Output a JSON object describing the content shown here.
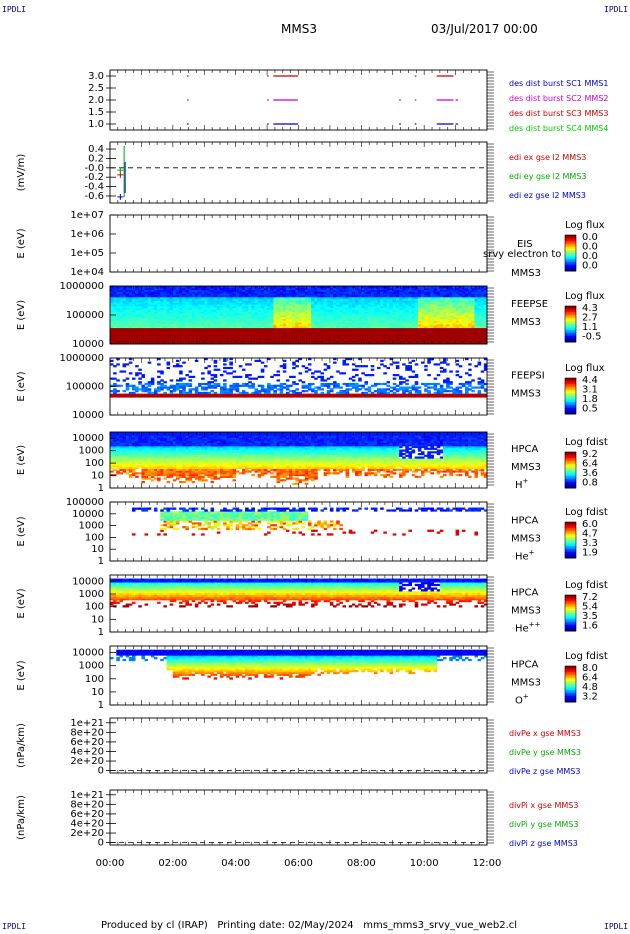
{
  "header": {
    "corner_tl": "IPDLI",
    "corner_tr": "IPDLI",
    "corner_bl": "IPDLI",
    "corner_br": "IPDLI",
    "spacecraft": "MMS3",
    "date": "03/Jul/2017 00:00"
  },
  "footer": {
    "produced_by": "Produced by cl (IRAP)",
    "printing_date": "Printing date: 02/May/2024",
    "plot_file": "mms_mms3_srvy_vue_web2.cl"
  },
  "chart_data": {
    "type": "multi-panel",
    "x_tick_labels": [
      "00:00",
      "02:00",
      "04:00",
      "06:00",
      "08:00",
      "10:00",
      "12:00"
    ],
    "x_range_hours": [
      0,
      12
    ],
    "panels": [
      {
        "kind": "burst",
        "y_ticks": [
          "3.0",
          "2.5",
          "2.0",
          "1.5",
          "1.0"
        ],
        "y_values": [
          3.0,
          2.5,
          2.0,
          1.5,
          1.0
        ],
        "ylim": [
          0.75,
          3.25
        ],
        "legend": [
          {
            "text": "des dist burst SC1 MMS1",
            "color": "#0000cc"
          },
          {
            "text": "des dist burst SC2 MMS2",
            "color": "#cc00cc"
          },
          {
            "text": "des dist burst SC3 MMS3",
            "color": "#cc0000"
          },
          {
            "text": "des dist burst SC4 MMS4",
            "color": "#00cc00"
          }
        ],
        "series": [
          {
            "sc": 1,
            "level": 1.0,
            "color": "#0000cc",
            "intervals": [
              [
                2.45,
                2.47
              ],
              [
                5.0,
                5.02
              ],
              [
                5.2,
                5.95
              ],
              [
                9.2,
                9.23
              ],
              [
                9.7,
                9.72
              ],
              [
                10.4,
                10.9
              ],
              [
                11.0,
                11.05
              ]
            ]
          },
          {
            "sc": 2,
            "level": 2.0,
            "color": "#cc00cc",
            "intervals": [
              [
                2.45,
                2.47
              ],
              [
                5.0,
                5.02
              ],
              [
                5.2,
                5.95
              ],
              [
                9.2,
                9.23
              ],
              [
                9.7,
                9.72
              ],
              [
                10.4,
                10.9
              ],
              [
                11.0,
                11.05
              ]
            ]
          },
          {
            "sc": 3,
            "level": 3.0,
            "color": "#cc0000",
            "intervals": [
              [
                2.45,
                2.47
              ],
              [
                5.0,
                5.02
              ],
              [
                5.2,
                5.95
              ],
              [
                9.7,
                9.72
              ],
              [
                10.4,
                10.9
              ]
            ]
          }
        ]
      },
      {
        "kind": "lines",
        "ylabel": "(mV/m)",
        "y_ticks": [
          "0.4",
          "0.2",
          "-0.0",
          "-0.2",
          "-0.4",
          "-0.6"
        ],
        "y_values": [
          0.4,
          0.2,
          0.0,
          -0.2,
          -0.4,
          -0.6
        ],
        "ylim": [
          -0.75,
          0.55
        ],
        "legend": [
          {
            "text": "edi ex gse l2 MMS3",
            "color": "#cc0000"
          },
          {
            "text": "edi ey gse l2 MMS3",
            "color": "#00aa00"
          },
          {
            "text": "edi ez gse l2 MMS3",
            "color": "#0000cc"
          }
        ],
        "points": [
          {
            "x": 0.33,
            "y": -0.15,
            "color": "#cc0000"
          },
          {
            "x": 0.33,
            "y": -0.05,
            "color": "#00aa00"
          },
          {
            "x": 0.33,
            "y": -0.62,
            "color": "#0000cc"
          }
        ]
      },
      {
        "kind": "empty-spectrogram",
        "ylabel": "E (eV)",
        "y_ticks": [
          "1e+07",
          "1e+06",
          "1e+05",
          "1e+04"
        ],
        "y_log": [
          7,
          6,
          5,
          4
        ],
        "ylim_log": [
          4,
          7
        ],
        "label": [
          "EIS",
          "MMS3"
        ],
        "overlay_text": "srvy electron to",
        "colorbar": {
          "title": "Log flux",
          "ticks": [
            "0.0",
            "0.0",
            "0.0",
            "0.0"
          ]
        }
      },
      {
        "kind": "spectrogram",
        "ylabel": "E (eV)",
        "y_ticks": [
          "1000000",
          "100000",
          "10000"
        ],
        "y_log": [
          6,
          5,
          4
        ],
        "ylim_log": [
          4,
          6
        ],
        "label": [
          "FEEPSE",
          "MMS3"
        ],
        "colorbar": {
          "title": "Log flux",
          "ticks": [
            "4.3",
            "2.7",
            "1.1",
            "-0.5"
          ]
        },
        "profile": "feeps_e"
      },
      {
        "kind": "spectrogram",
        "ylabel": "E (eV)",
        "y_ticks": [
          "1000000",
          "100000",
          "10000"
        ],
        "y_log": [
          6,
          5,
          4
        ],
        "ylim_log": [
          4,
          6
        ],
        "label": [
          "FEEPSI",
          "MMS3"
        ],
        "colorbar": {
          "title": "Log flux",
          "ticks": [
            "4.4",
            "3.1",
            "1.8",
            "0.5"
          ]
        },
        "profile": "feeps_i"
      },
      {
        "kind": "spectrogram",
        "ylabel": "E (eV)",
        "y_ticks": [
          "10000",
          "1000",
          "100",
          "10",
          "1"
        ],
        "y_log": [
          4,
          3,
          2,
          1,
          0
        ],
        "ylim_log": [
          0,
          4.5
        ],
        "label": [
          "HPCA",
          "MMS3"
        ],
        "species": "H",
        "charge": "+",
        "colorbar": {
          "title": "Log fdist",
          "ticks": [
            "9.2",
            "6.4",
            "3.6",
            "0.8"
          ]
        },
        "profile": "hpca_h"
      },
      {
        "kind": "spectrogram",
        "ylabel": "E (eV)",
        "y_ticks": [
          "100000",
          "10000",
          "1000",
          "100",
          "10",
          "1"
        ],
        "y_log": [
          5,
          4,
          3,
          2,
          1,
          0
        ],
        "ylim_log": [
          0,
          5
        ],
        "label": [
          "HPCA",
          "MMS3"
        ],
        "species": "He",
        "charge": "+",
        "colorbar": {
          "title": "Log fdist",
          "ticks": [
            "6.0",
            "4.7",
            "3.3",
            "1.9"
          ]
        },
        "profile": "hpca_he1"
      },
      {
        "kind": "spectrogram",
        "ylabel": "E (eV)",
        "y_ticks": [
          "10000",
          "1000",
          "100",
          "10",
          "1"
        ],
        "y_log": [
          4,
          3,
          2,
          1,
          0
        ],
        "ylim_log": [
          0,
          4.5
        ],
        "label": [
          "HPCA",
          "MMS3"
        ],
        "species": "He",
        "charge": "++",
        "colorbar": {
          "title": "Log fdist",
          "ticks": [
            "7.2",
            "5.4",
            "3.5",
            "1.6"
          ]
        },
        "profile": "hpca_he2"
      },
      {
        "kind": "spectrogram",
        "ylabel": "E (eV)",
        "y_ticks": [
          "10000",
          "1000",
          "100",
          "10",
          "1"
        ],
        "y_log": [
          4,
          3,
          2,
          1,
          0
        ],
        "ylim_log": [
          0,
          4.5
        ],
        "label": [
          "HPCA",
          "MMS3"
        ],
        "species": "O",
        "charge": "+",
        "colorbar": {
          "title": "Log fdist",
          "ticks": [
            "8.0",
            "6.4",
            "4.8",
            "3.2"
          ]
        },
        "profile": "hpca_o"
      },
      {
        "kind": "lines",
        "ylabel": "(nPa/km)",
        "y_ticks": [
          "1e+21",
          "8e+20",
          "6e+20",
          "4e+20",
          "2e+20",
          "0"
        ],
        "y_values": [
          1.0,
          0.8,
          0.6,
          0.4,
          0.2,
          0.0
        ],
        "ylim": [
          -0.05,
          1.1
        ],
        "legend": [
          {
            "text": "divPe x gse MMS3",
            "color": "#cc0000"
          },
          {
            "text": "divPe y gse MMS3",
            "color": "#00aa00"
          },
          {
            "text": "divPe z gse MMS3",
            "color": "#0000cc"
          }
        ],
        "points": []
      },
      {
        "kind": "lines",
        "ylabel": "(nPa/km)",
        "y_ticks": [
          "1e+21",
          "8e+20",
          "6e+20",
          "4e+20",
          "2e+20",
          "0"
        ],
        "y_values": [
          1.0,
          0.8,
          0.6,
          0.4,
          0.2,
          0.0
        ],
        "ylim": [
          -0.05,
          1.1
        ],
        "legend": [
          {
            "text": "divPi x gse MMS3",
            "color": "#cc0000"
          },
          {
            "text": "divPi y gse MMS3",
            "color": "#00aa00"
          },
          {
            "text": "divPi z gse MMS3",
            "color": "#0000cc"
          }
        ],
        "points": []
      }
    ]
  }
}
